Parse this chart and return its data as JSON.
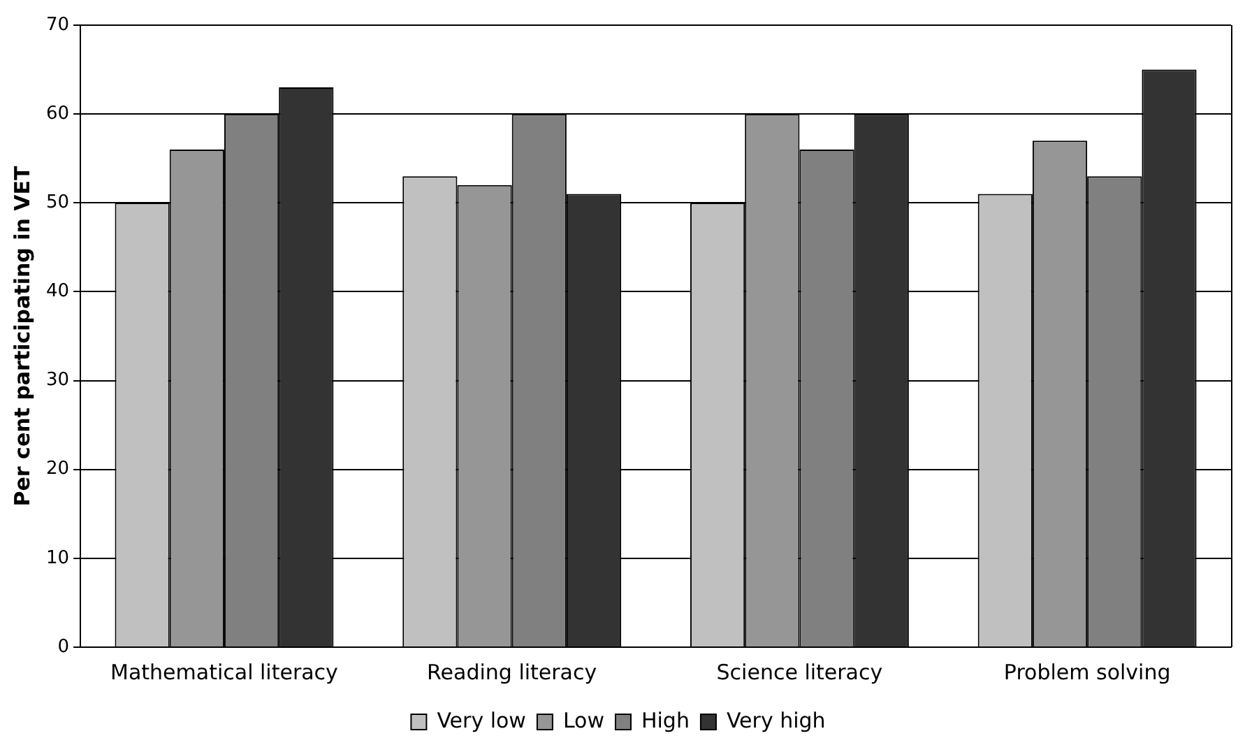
{
  "chart_data": {
    "type": "bar",
    "ylabel": "Per cent participating in VET",
    "categories": [
      "Mathematical literacy",
      "Reading literacy",
      "Science literacy",
      "Problem solving"
    ],
    "series": [
      {
        "name": "Very low",
        "color": "#c0c0c0",
        "values": [
          50,
          53,
          50,
          51
        ]
      },
      {
        "name": "Low",
        "color": "#969696",
        "values": [
          56,
          52,
          60,
          57
        ]
      },
      {
        "name": "High",
        "color": "#808080",
        "values": [
          60,
          60,
          56,
          53
        ]
      },
      {
        "name": "Very high",
        "color": "#333333",
        "values": [
          63,
          51,
          60,
          65
        ]
      }
    ],
    "ylim": [
      0,
      70
    ],
    "yticks": [
      0,
      10,
      20,
      30,
      40,
      50,
      60,
      70
    ],
    "grid": "y",
    "legend": "bottom"
  }
}
